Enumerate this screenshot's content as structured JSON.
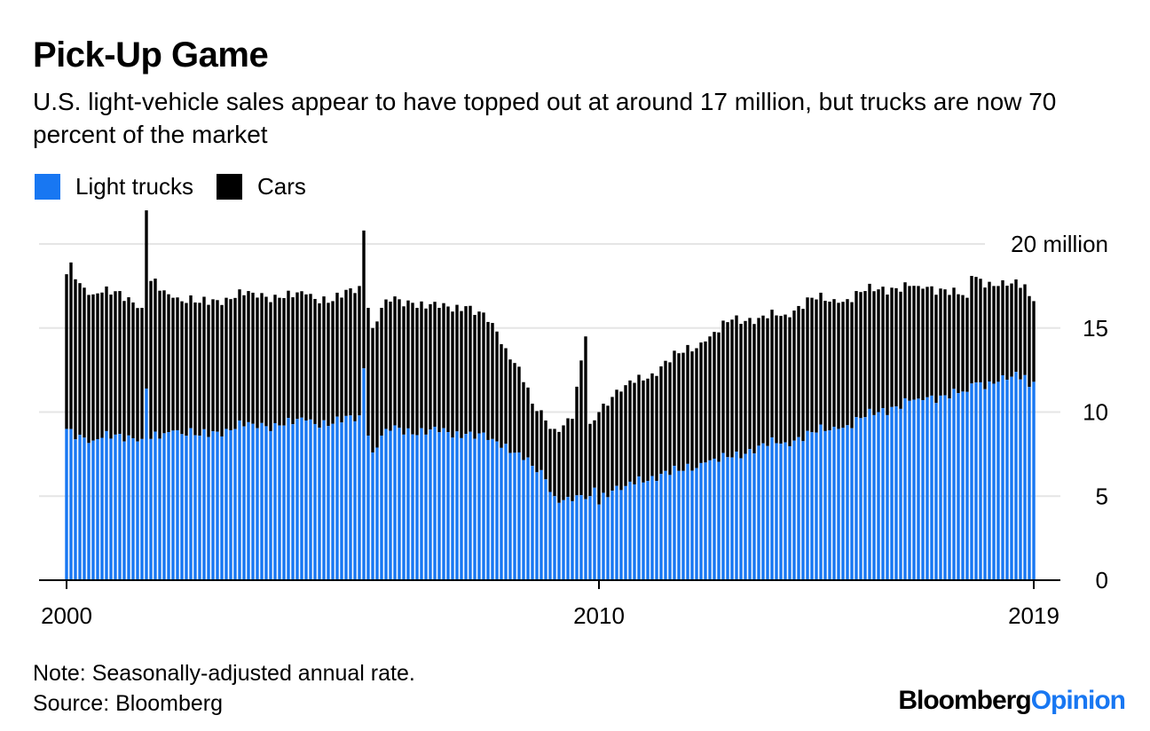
{
  "header": {
    "title": "Pick-Up Game",
    "subtitle": "U.S. light-vehicle sales appear to have topped out at around 17 million, but trucks are now 70 percent of the market"
  },
  "legend": {
    "items": [
      {
        "label": "Light trucks",
        "color": "#1877f2"
      },
      {
        "label": "Cars",
        "color": "#000000"
      }
    ]
  },
  "footer": {
    "note": "Note: Seasonally-adjusted annual rate.",
    "source": "Source: Bloomberg",
    "brand_main": "Bloomberg",
    "brand_accent": "Opinion"
  },
  "chart_data": {
    "type": "bar",
    "stacked": true,
    "title": "Pick-Up Game",
    "units": "million vehicles (SAAR)",
    "x_range": [
      "2000-01",
      "2019-01"
    ],
    "x_ticks": [
      "2000",
      "2010",
      "2019"
    ],
    "y_range": [
      0,
      20
    ],
    "y_ticks": [
      {
        "value": 0,
        "label": "0"
      },
      {
        "value": 5,
        "label": "5"
      },
      {
        "value": 10,
        "label": "10"
      },
      {
        "value": 15,
        "label": "15"
      },
      {
        "value": 20,
        "label": "20 million"
      }
    ],
    "grid": true,
    "colors": {
      "trucks": "#1877f2",
      "cars": "#000000",
      "grid": "#e5e5e5",
      "axis": "#000000"
    },
    "anchors": {
      "trucks": [
        [
          0,
          9.0
        ],
        [
          6,
          8.3
        ],
        [
          12,
          8.7
        ],
        [
          17,
          8.4
        ],
        [
          18,
          11.4
        ],
        [
          19,
          8.4
        ],
        [
          24,
          8.9
        ],
        [
          30,
          8.6
        ],
        [
          36,
          9.0
        ],
        [
          42,
          9.3
        ],
        [
          48,
          9.2
        ],
        [
          54,
          9.5
        ],
        [
          60,
          9.3
        ],
        [
          66,
          9.8
        ],
        [
          67,
          12.6
        ],
        [
          68,
          8.6
        ],
        [
          69,
          7.6
        ],
        [
          72,
          9.0
        ],
        [
          84,
          8.8
        ],
        [
          90,
          8.7
        ],
        [
          96,
          8.4
        ],
        [
          102,
          7.6
        ],
        [
          105,
          6.8
        ],
        [
          108,
          6.0
        ],
        [
          110,
          5.0
        ],
        [
          114,
          4.7
        ],
        [
          118,
          5.0
        ],
        [
          119,
          5.5
        ],
        [
          120,
          4.5
        ],
        [
          121,
          5.2
        ],
        [
          126,
          5.6
        ],
        [
          132,
          6.2
        ],
        [
          138,
          6.5
        ],
        [
          144,
          7.0
        ],
        [
          150,
          7.3
        ],
        [
          156,
          8.0
        ],
        [
          162,
          8.2
        ],
        [
          168,
          8.8
        ],
        [
          174,
          9.0
        ],
        [
          180,
          9.7
        ],
        [
          186,
          10.3
        ],
        [
          192,
          10.8
        ],
        [
          198,
          11.0
        ],
        [
          203,
          11.2
        ],
        [
          204,
          11.7
        ],
        [
          210,
          11.8
        ],
        [
          216,
          12.2
        ],
        [
          217,
          11.5
        ],
        [
          218,
          11.8
        ]
      ],
      "total": [
        [
          0,
          18.2
        ],
        [
          1,
          18.9
        ],
        [
          2,
          17.9
        ],
        [
          6,
          17.0
        ],
        [
          12,
          17.2
        ],
        [
          17,
          16.2
        ],
        [
          18,
          22.0
        ],
        [
          19,
          17.8
        ],
        [
          24,
          16.8
        ],
        [
          30,
          16.5
        ],
        [
          36,
          16.8
        ],
        [
          42,
          17.1
        ],
        [
          48,
          16.8
        ],
        [
          54,
          17.0
        ],
        [
          60,
          16.6
        ],
        [
          66,
          17.5
        ],
        [
          67,
          20.8
        ],
        [
          68,
          16.2
        ],
        [
          69,
          15.0
        ],
        [
          72,
          16.7
        ],
        [
          78,
          16.5
        ],
        [
          84,
          16.2
        ],
        [
          90,
          16.3
        ],
        [
          96,
          15.3
        ],
        [
          99,
          13.8
        ],
        [
          102,
          12.7
        ],
        [
          105,
          10.5
        ],
        [
          108,
          9.5
        ],
        [
          110,
          9.0
        ],
        [
          114,
          9.6
        ],
        [
          117,
          14.5
        ],
        [
          118,
          9.3
        ],
        [
          120,
          10.0
        ],
        [
          121,
          10.5
        ],
        [
          126,
          11.6
        ],
        [
          132,
          12.3
        ],
        [
          138,
          13.5
        ],
        [
          144,
          14.2
        ],
        [
          150,
          15.5
        ],
        [
          156,
          15.6
        ],
        [
          162,
          15.8
        ],
        [
          168,
          16.8
        ],
        [
          174,
          16.5
        ],
        [
          180,
          17.2
        ],
        [
          186,
          17.4
        ],
        [
          192,
          17.5
        ],
        [
          198,
          17.3
        ],
        [
          203,
          16.8
        ],
        [
          204,
          18.1
        ],
        [
          210,
          17.5
        ],
        [
          216,
          17.6
        ],
        [
          217,
          16.9
        ],
        [
          218,
          16.6
        ]
      ]
    }
  }
}
